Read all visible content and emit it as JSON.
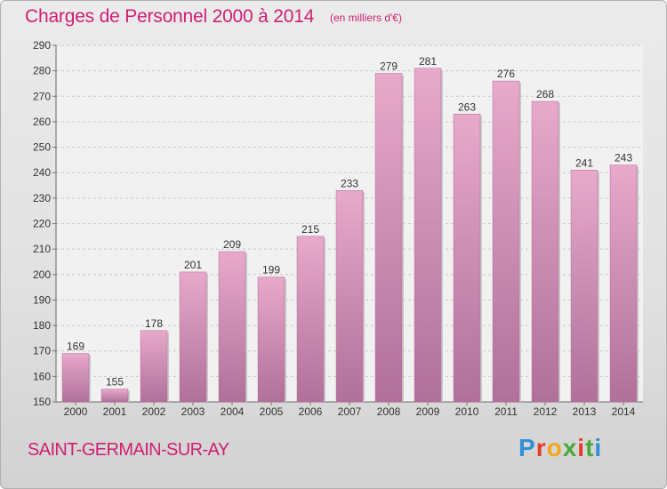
{
  "header": {
    "title": "Charges de Personnel 2000 à 2014",
    "subtitle": "(en milliers d'€)"
  },
  "footer": {
    "town": "SAINT-GERMAIN-SUR-AY",
    "brand": "Proxiti"
  },
  "colors": {
    "accent": "#d01f73",
    "bar_top": "#e8a9cb",
    "bar_bottom": "#b0709a",
    "brand_letters": [
      "#2f8fd8",
      "#e63a2e",
      "#f3a51b",
      "#4aa83a",
      "#e63a2e",
      "#4aa83a",
      "#2f8fd8"
    ]
  },
  "chart_data": {
    "type": "bar",
    "title": "Charges de Personnel 2000 à 2014",
    "subtitle": "(en milliers d'€)",
    "categories": [
      "2000",
      "2001",
      "2002",
      "2003",
      "2004",
      "2005",
      "2006",
      "2007",
      "2008",
      "2009",
      "2010",
      "2011",
      "2012",
      "2013",
      "2014"
    ],
    "values": [
      169,
      155,
      178,
      201,
      209,
      199,
      215,
      233,
      279,
      281,
      263,
      276,
      268,
      241,
      243
    ],
    "ylim": [
      150,
      290
    ],
    "yticks": [
      150,
      160,
      170,
      180,
      190,
      200,
      210,
      220,
      230,
      240,
      250,
      260,
      270,
      280,
      290
    ],
    "xlabel": "",
    "ylabel": "",
    "grid": true,
    "data_labels": true
  }
}
